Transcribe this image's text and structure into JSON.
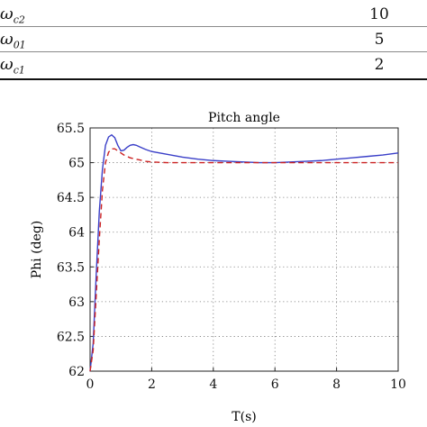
{
  "table": {
    "rows": [
      {
        "symbol": "ω",
        "sub": "c2",
        "value": "10"
      },
      {
        "symbol": "ω",
        "sub": "01",
        "value": "5"
      },
      {
        "symbol": "ω",
        "sub": "c1",
        "value": "2"
      }
    ]
  },
  "chart_data": {
    "type": "line",
    "title": "Pitch angle",
    "xlabel": "T(s)",
    "ylabel": "Phi (deg)",
    "xlim": [
      0,
      10
    ],
    "ylim": [
      62,
      65.5
    ],
    "xticks": [
      "0",
      "2",
      "4",
      "6",
      "8",
      "10"
    ],
    "yticks": [
      "62",
      "62.5",
      "63",
      "63.5",
      "64",
      "64.5",
      "65",
      "65.5"
    ],
    "grid": "dotted",
    "series": [
      {
        "style": "solid",
        "color": "#3a3fc8",
        "x": [
          0,
          0.1,
          0.2,
          0.3,
          0.4,
          0.5,
          0.6,
          0.7,
          0.8,
          0.9,
          1.0,
          1.1,
          1.2,
          1.3,
          1.4,
          1.5,
          1.6,
          1.8,
          2.0,
          2.5,
          3.0,
          3.5,
          4.0,
          4.5,
          5.0,
          5.5,
          6.0,
          6.5,
          7.0,
          7.5,
          8.0,
          8.5,
          9.0,
          9.5,
          10.0
        ],
        "y": [
          62.0,
          62.4,
          63.4,
          64.3,
          64.9,
          65.25,
          65.37,
          65.4,
          65.36,
          65.25,
          65.17,
          65.18,
          65.22,
          65.25,
          65.26,
          65.25,
          65.23,
          65.19,
          65.16,
          65.12,
          65.08,
          65.05,
          65.03,
          65.02,
          65.01,
          65.0,
          65.0,
          65.01,
          65.02,
          65.03,
          65.05,
          65.07,
          65.09,
          65.11,
          65.14
        ]
      },
      {
        "style": "dashed",
        "color": "#cc2222",
        "x": [
          0,
          0.1,
          0.2,
          0.3,
          0.4,
          0.5,
          0.6,
          0.7,
          0.8,
          0.9,
          1.0,
          1.1,
          1.2,
          1.3,
          1.4,
          1.5,
          1.6,
          1.8,
          2.0,
          2.5,
          3.0,
          4.0,
          5.0,
          6.0,
          7.0,
          8.0,
          9.0,
          10.0
        ],
        "y": [
          62.0,
          62.3,
          63.1,
          63.9,
          64.6,
          65.0,
          65.15,
          65.2,
          65.2,
          65.17,
          65.14,
          65.11,
          65.09,
          65.07,
          65.06,
          65.05,
          65.04,
          65.02,
          65.01,
          65.0,
          65.0,
          65.0,
          65.0,
          65.0,
          65.0,
          65.0,
          65.0,
          65.0
        ]
      }
    ]
  }
}
